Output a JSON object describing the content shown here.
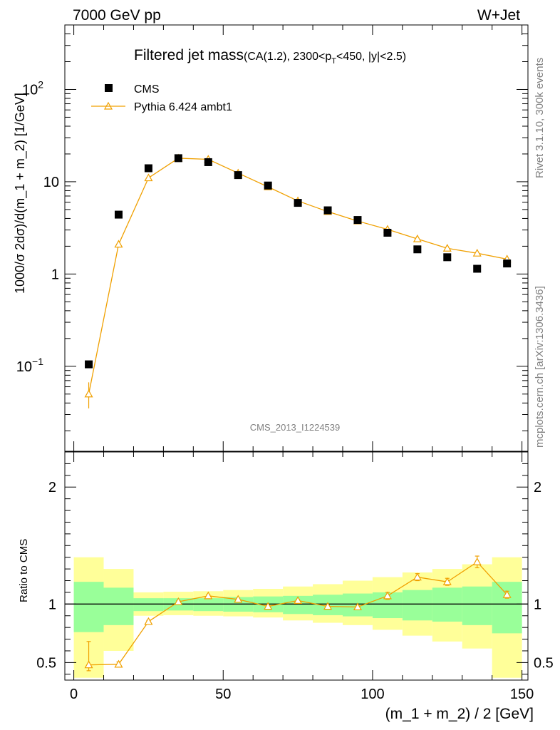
{
  "header": {
    "left": "7000 GeV pp",
    "right": "W+Jet"
  },
  "side_text": {
    "top": "Rivet 3.1.10,  300k events",
    "bottom": "mcplots.cern.ch [arXiv:1306.3436]"
  },
  "chart_data": [
    {
      "type": "scatter",
      "title_main": "Filtered jet mass",
      "title_sub": "(CA(1.2), 2300<p",
      "title_sub_sub": "T",
      "title_sub_tail": "<450, |y|<2.5)",
      "ylabel": "1000/σ 2dσ)/d(m_1 + m_2) [1/GeV]",
      "analysis_label": "CMS_2013_I1224539",
      "yscale": "log",
      "xlim": [
        -3,
        152
      ],
      "ylim": [
        0.012,
        500
      ],
      "x_ticks": [
        0,
        50,
        100,
        150
      ],
      "y_ticks": [
        {
          "value": 0.1,
          "base": "10",
          "exp": "−1"
        },
        {
          "value": 1,
          "base": "1",
          "exp": ""
        },
        {
          "value": 10,
          "base": "10",
          "exp": ""
        },
        {
          "value": 100,
          "base": "10",
          "exp": "2"
        }
      ],
      "legend": {
        "position": "top-left"
      },
      "series": [
        {
          "name": "CMS",
          "style": "black-square",
          "color": "#000000",
          "x": [
            5,
            15,
            25,
            35,
            45,
            55,
            65,
            75,
            85,
            95,
            105,
            115,
            125,
            135,
            145
          ],
          "y": [
            0.105,
            4.4,
            14.0,
            18.0,
            16.3,
            11.8,
            9.1,
            5.9,
            4.9,
            3.85,
            2.8,
            1.85,
            1.52,
            1.14,
            1.3
          ]
        },
        {
          "name": "Pythia 6.424 ambt1",
          "style": "orange-open-triangle-line",
          "color": "#f0a000",
          "x": [
            5,
            15,
            25,
            35,
            45,
            55,
            65,
            75,
            85,
            95,
            105,
            115,
            125,
            135,
            145
          ],
          "y": [
            0.05,
            2.1,
            11.0,
            18.0,
            17.5,
            12.4,
            8.8,
            6.2,
            4.75,
            3.75,
            3.05,
            2.4,
            1.9,
            1.68,
            1.45
          ],
          "y_err_low": [
            0.035,
            2.02,
            10.8,
            17.8,
            17.3,
            12.3,
            8.7,
            6.1,
            4.7,
            3.7,
            3.0,
            2.35,
            1.86,
            1.64,
            1.41
          ],
          "y_err_high": [
            0.067,
            2.18,
            11.2,
            18.2,
            17.7,
            12.5,
            8.9,
            6.3,
            4.8,
            3.8,
            3.1,
            2.45,
            1.94,
            1.72,
            1.49
          ]
        }
      ]
    },
    {
      "type": "line",
      "xlabel": "(m_1 + m_2) / 2 [GeV]",
      "ylabel": "Ratio to CMS",
      "xlim": [
        -3,
        152
      ],
      "ylim": [
        0.35,
        2.3
      ],
      "x_ticks": [
        0,
        50,
        100,
        150
      ],
      "y_ticks": [
        0.5,
        1,
        2
      ],
      "bands": {
        "bin_edges": [
          0,
          10,
          20,
          30,
          40,
          50,
          60,
          70,
          80,
          90,
          100,
          110,
          120,
          130,
          140,
          150
        ],
        "inner_color": "#99ff99",
        "outer_color": "#ffff99",
        "inner_low": [
          0.76,
          0.82,
          0.94,
          0.945,
          0.94,
          0.935,
          0.93,
          0.915,
          0.905,
          0.895,
          0.88,
          0.86,
          0.85,
          0.82,
          0.75
        ],
        "inner_high": [
          1.19,
          1.14,
          1.05,
          1.05,
          1.05,
          1.06,
          1.065,
          1.07,
          1.08,
          1.09,
          1.1,
          1.12,
          1.14,
          1.15,
          1.19
        ],
        "outer_low": [
          0.37,
          0.6,
          0.9,
          0.905,
          0.9,
          0.895,
          0.885,
          0.86,
          0.84,
          0.82,
          0.78,
          0.73,
          0.68,
          0.62,
          0.37
        ],
        "outer_high": [
          1.4,
          1.3,
          1.1,
          1.105,
          1.11,
          1.12,
          1.13,
          1.15,
          1.17,
          1.2,
          1.23,
          1.27,
          1.3,
          1.34,
          1.4
        ]
      },
      "reference_line": 1,
      "series": [
        {
          "name": "Pythia 6.424 ambt1",
          "color": "#f0a000",
          "x": [
            5,
            15,
            25,
            35,
            45,
            55,
            65,
            75,
            85,
            95,
            105,
            115,
            125,
            135,
            145
          ],
          "y": [
            0.48,
            0.485,
            0.85,
            1.02,
            1.07,
            1.04,
            0.98,
            1.03,
            0.98,
            0.975,
            1.07,
            1.23,
            1.19,
            1.36,
            1.08
          ],
          "y_err_low": [
            0.43,
            0.465,
            0.84,
            1.01,
            1.06,
            1.03,
            0.97,
            1.02,
            0.97,
            0.965,
            1.04,
            1.2,
            1.16,
            1.31,
            1.05
          ],
          "y_err_high": [
            0.68,
            0.505,
            0.86,
            1.03,
            1.08,
            1.05,
            0.99,
            1.04,
            0.99,
            0.985,
            1.1,
            1.26,
            1.22,
            1.41,
            1.11
          ]
        }
      ]
    }
  ]
}
